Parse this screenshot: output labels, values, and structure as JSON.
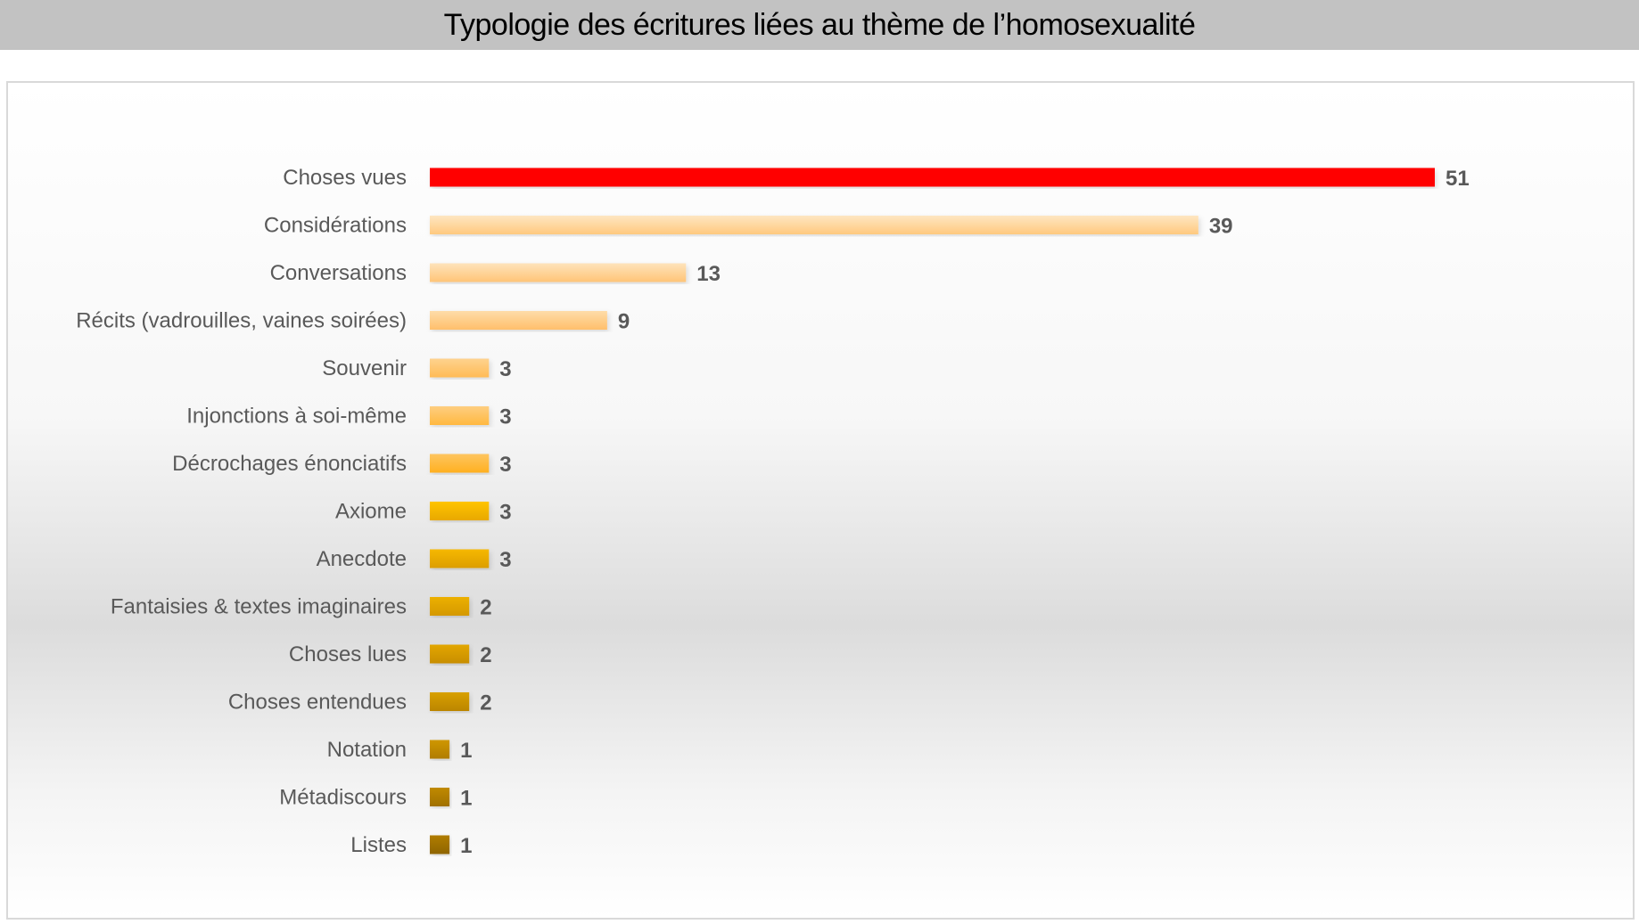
{
  "chart_data": {
    "type": "bar",
    "orientation": "horizontal",
    "title": "Typologie des écritures liées au thème de l’homosexualité",
    "xlabel": "",
    "ylabel": "",
    "xlim": [
      0,
      51
    ],
    "grid": false,
    "categories": [
      "Choses vues",
      "Considérations",
      "Conversations",
      "Récits (vadrouilles, vaines soirées)",
      "Souvenir",
      "Injonctions à soi-même",
      "Décrochages énonciatifs",
      "Axiome",
      "Anecdote",
      "Fantaisies & textes imaginaires",
      "Choses lues",
      "Choses entendues",
      "Notation",
      "Métadiscours",
      "Listes"
    ],
    "values": [
      51,
      39,
      13,
      9,
      3,
      3,
      3,
      3,
      3,
      2,
      2,
      2,
      1,
      1,
      1
    ],
    "colors": [
      [
        "#ff0000",
        "#ff0000"
      ],
      [
        "#fee6c2",
        "#ffc97e"
      ],
      [
        "#fee3bb",
        "#ffc477"
      ],
      [
        "#fedcaa",
        "#ffbf6b"
      ],
      [
        "#fed28f",
        "#ffbb55"
      ],
      [
        "#fecd80",
        "#ffb840"
      ],
      [
        "#fec560",
        "#ffb020"
      ],
      [
        "#ffc400",
        "#e8a800"
      ],
      [
        "#f6b800",
        "#dc9e00"
      ],
      [
        "#ecb000",
        "#d49800"
      ],
      [
        "#e2a600",
        "#c88e00"
      ],
      [
        "#d8a000",
        "#bb8500"
      ],
      [
        "#cf9700",
        "#b07c00"
      ],
      [
        "#c08a00",
        "#a07000"
      ],
      [
        "#b07c00",
        "#8f6500"
      ]
    ]
  }
}
